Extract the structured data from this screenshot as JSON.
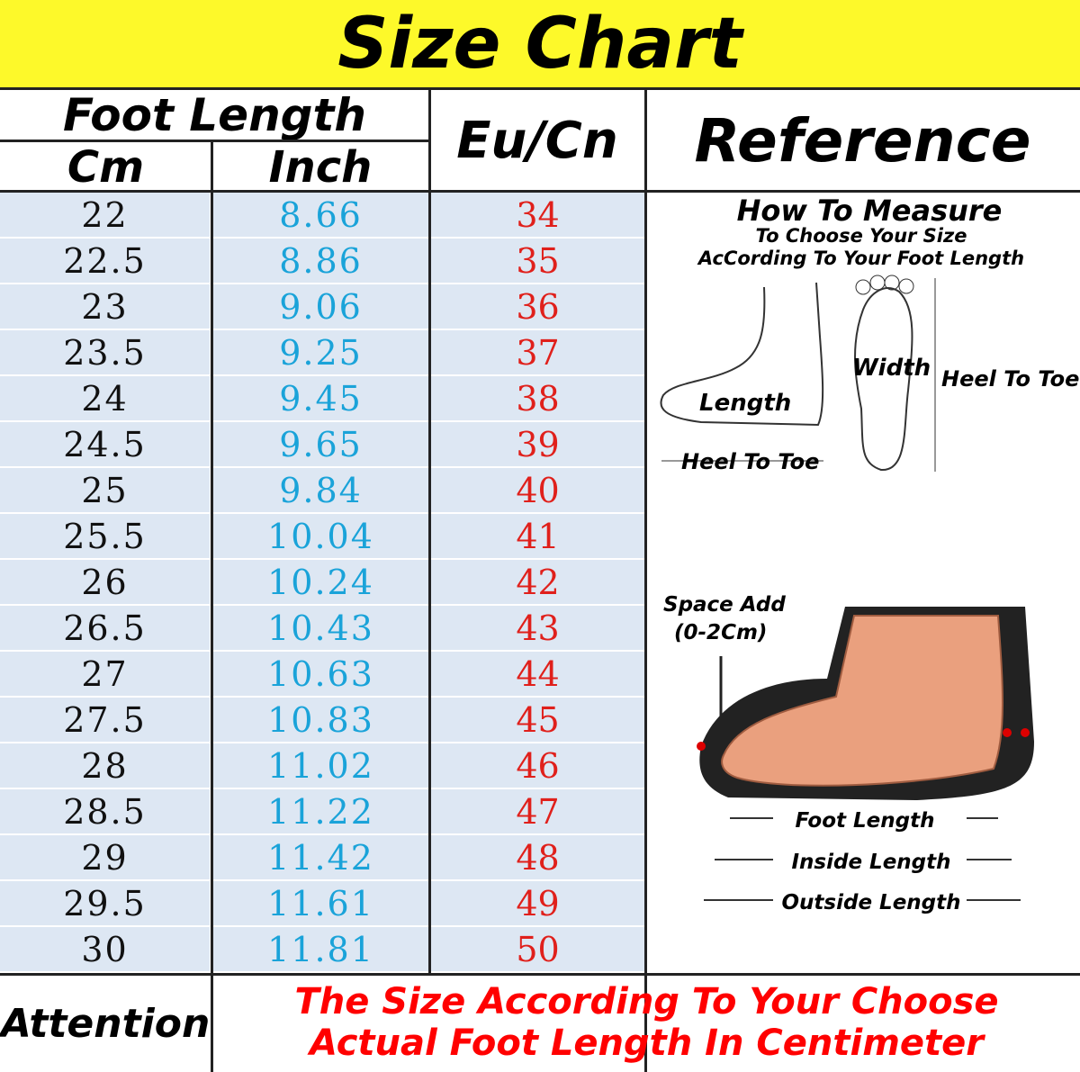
{
  "header": {
    "title": "Size Chart"
  },
  "table": {
    "headers": {
      "foot_length": "Foot Length",
      "cm": "Cm",
      "inch": "Inch",
      "eu_cn": "Eu/Cn",
      "reference": "Reference"
    },
    "rows": [
      [
        "22",
        "8.66",
        "34"
      ],
      [
        "22.5",
        "8.86",
        "35"
      ],
      [
        "23",
        "9.06",
        "36"
      ],
      [
        "23.5",
        "9.25",
        "37"
      ],
      [
        "24",
        "9.45",
        "38"
      ],
      [
        "24.5",
        "9.65",
        "39"
      ],
      [
        "25",
        "9.84",
        "40"
      ],
      [
        "25.5",
        "10.04",
        "41"
      ],
      [
        "26",
        "10.24",
        "42"
      ],
      [
        "26.5",
        "10.43",
        "43"
      ],
      [
        "27",
        "10.63",
        "44"
      ],
      [
        "27.5",
        "10.83",
        "45"
      ],
      [
        "28",
        "11.02",
        "46"
      ],
      [
        "28.5",
        "11.22",
        "47"
      ],
      [
        "29",
        "11.42",
        "48"
      ],
      [
        "29.5",
        "11.61",
        "49"
      ],
      [
        "30",
        "11.81",
        "50"
      ]
    ]
  },
  "reference": {
    "how_to_measure": "How To Measure",
    "subtitle_1": "To Choose Your Size",
    "subtitle_2": "AcCording To Your Foot Length",
    "length": "Length",
    "heel_to_toe_side": "Heel To Toe",
    "width": "Width",
    "heel_to_toe_sole": "Heel To Toe",
    "space_add": "Space Add",
    "space_range": "(0-2Cm)",
    "foot_length": "Foot Length",
    "inside_length": "Inside Length",
    "outside_length": "Outside Length"
  },
  "attention": {
    "label": "Attention",
    "lines": [
      "The Size According To Your Choose",
      "Actual Foot Length In Centimeter"
    ]
  }
}
